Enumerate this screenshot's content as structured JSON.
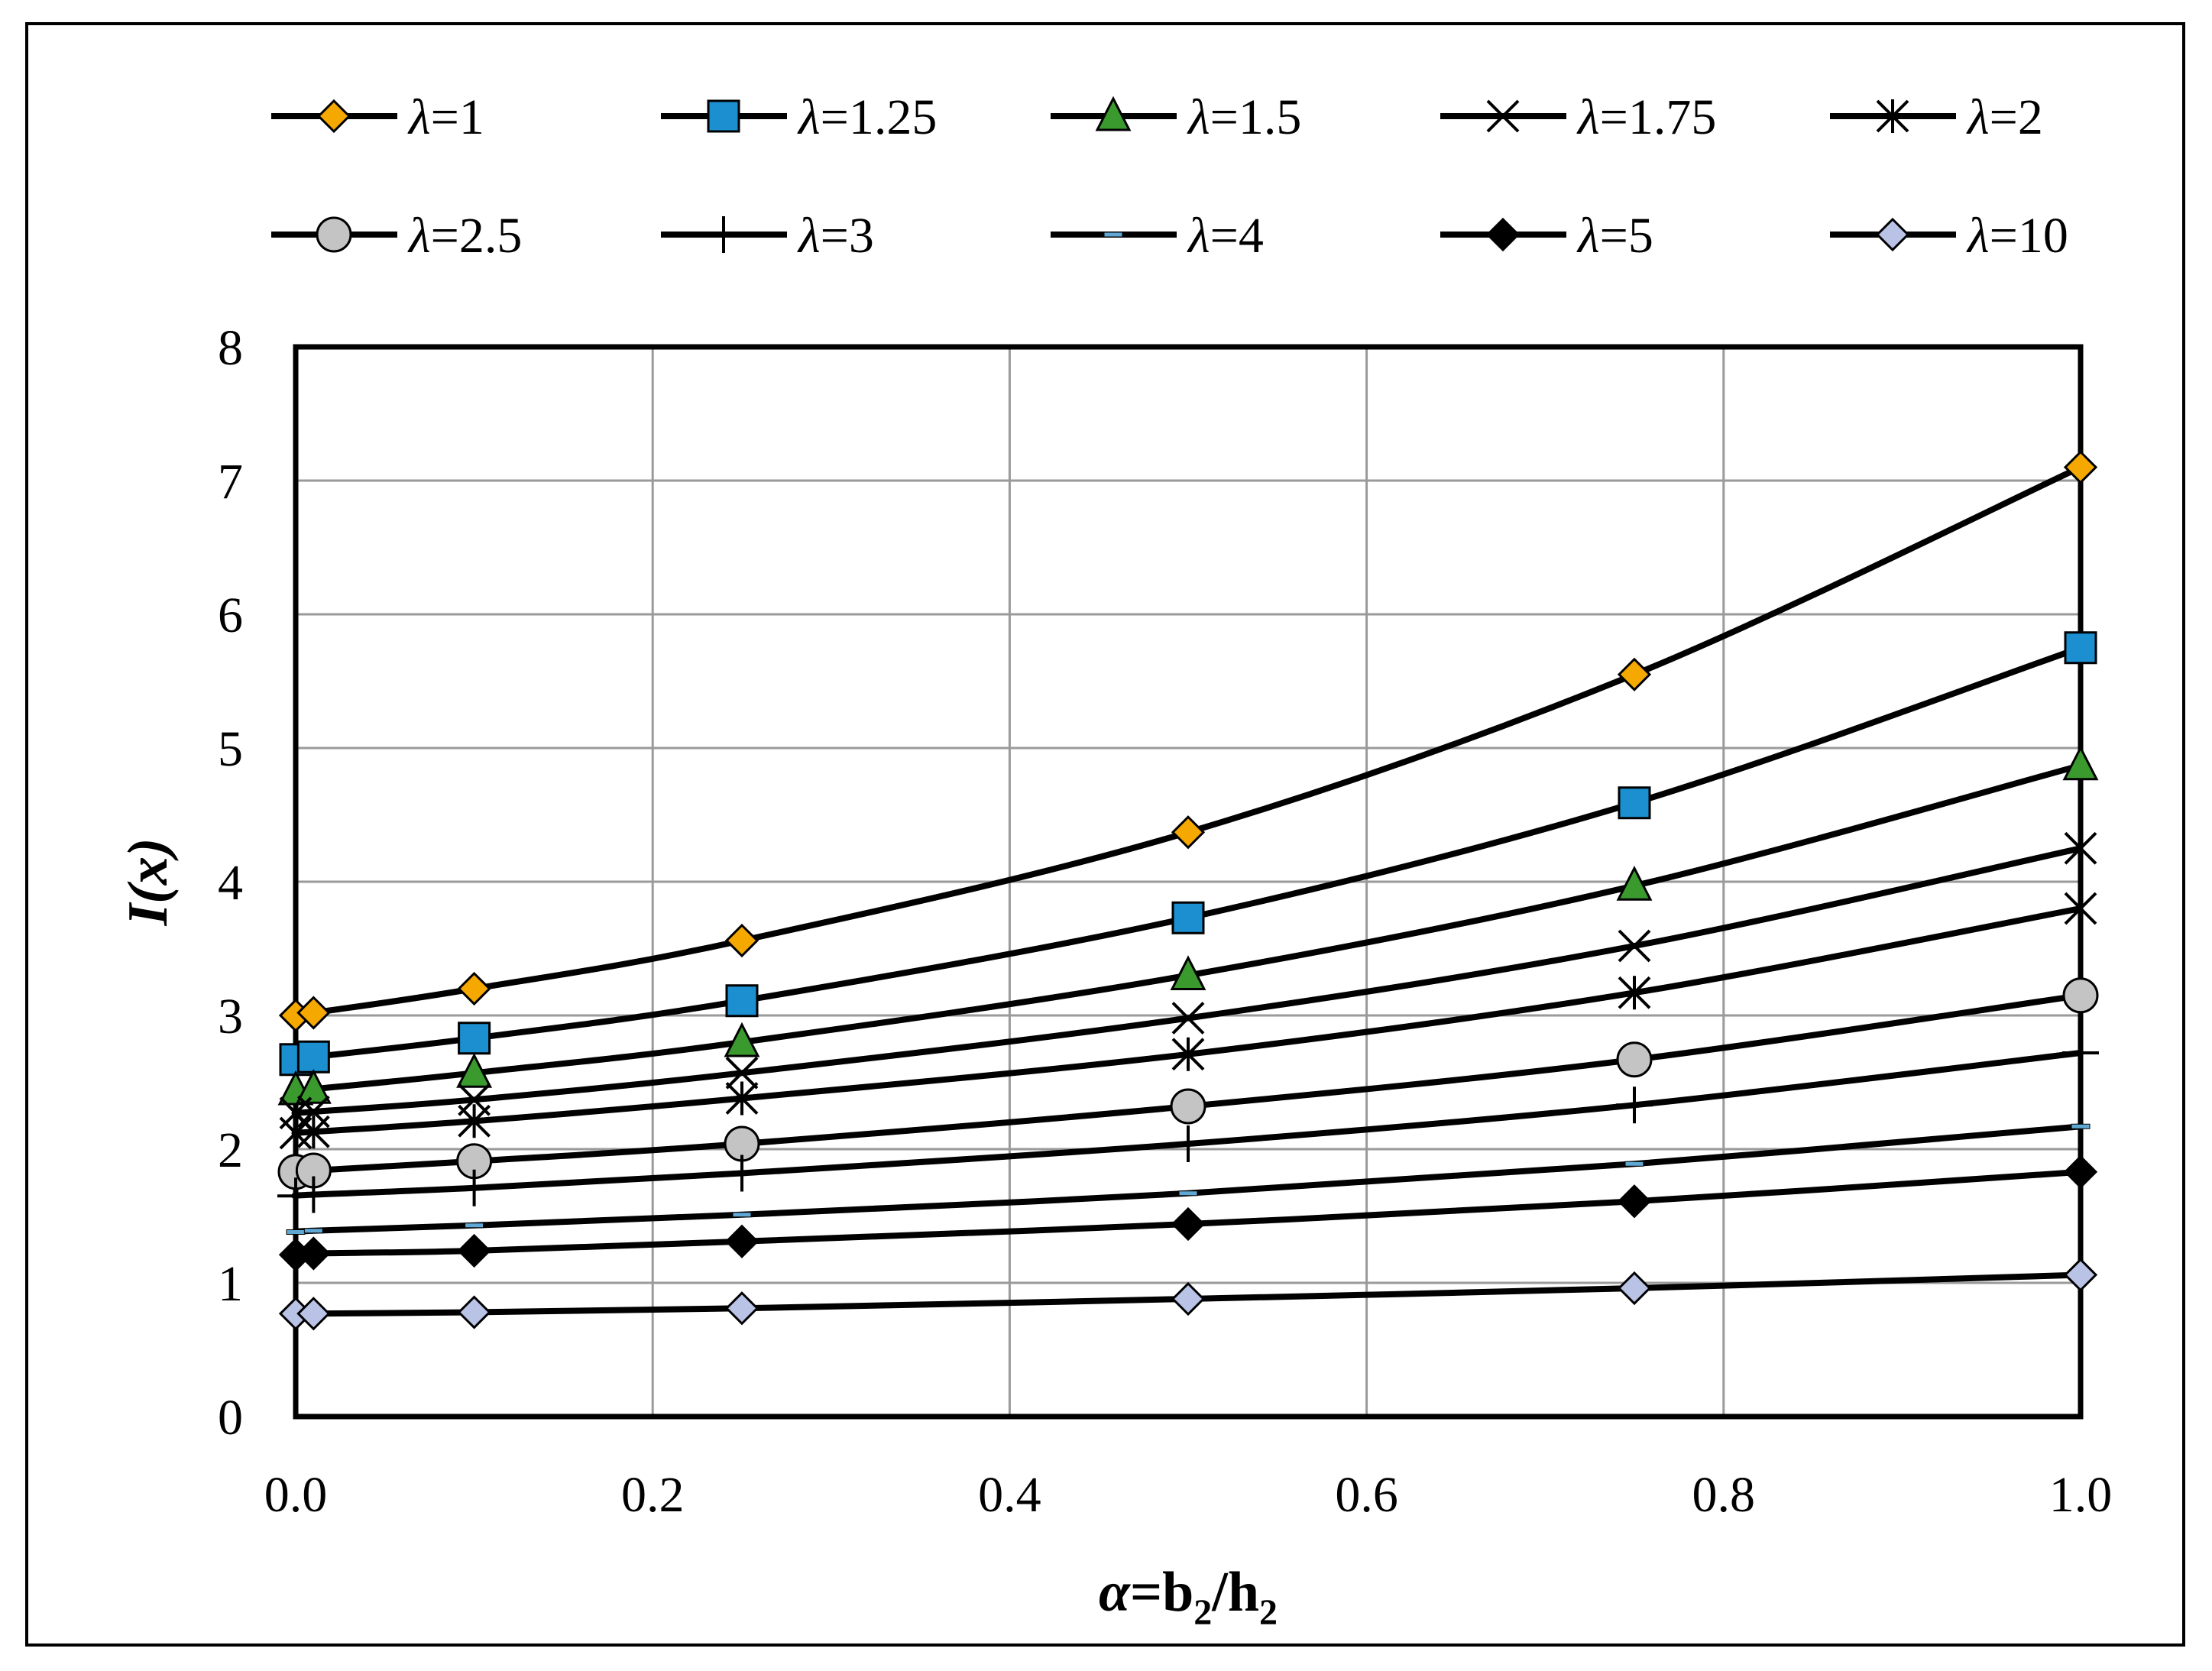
{
  "chart_data": {
    "type": "line",
    "xlabel": "α=b2/h2",
    "ylabel": "I(x)",
    "xlim": [
      0.0,
      1.0
    ],
    "ylim": [
      0,
      8
    ],
    "x_ticks": [
      "0.0",
      "0.2",
      "0.4",
      "0.6",
      "0.8",
      "1.0"
    ],
    "y_ticks": [
      "0",
      "1",
      "2",
      "3",
      "4",
      "5",
      "6",
      "7",
      "8"
    ],
    "grid": true,
    "legend_position": "top",
    "x": [
      0.0,
      0.01,
      0.1,
      0.25,
      0.5,
      0.75,
      1.0
    ],
    "series": [
      {
        "name": "λ=1",
        "prefix": "λ",
        "suffix": "=1",
        "marker": "diamond",
        "fill": "#F5A800",
        "values": [
          3.0,
          3.02,
          3.2,
          3.56,
          4.37,
          5.55,
          7.1
        ]
      },
      {
        "name": "λ=1.25",
        "prefix": "λ",
        "suffix": "=1.25",
        "marker": "square",
        "fill": "#1B8FD0",
        "values": [
          2.67,
          2.69,
          2.83,
          3.11,
          3.73,
          4.59,
          5.75
        ]
      },
      {
        "name": "λ=1.5",
        "prefix": "λ",
        "suffix": "=1.5",
        "marker": "triangle",
        "fill": "#3A9A2E",
        "values": [
          2.44,
          2.45,
          2.57,
          2.8,
          3.3,
          3.97,
          4.87
        ]
      },
      {
        "name": "λ=1.75",
        "prefix": "λ",
        "suffix": "=1.75",
        "marker": "x",
        "fill": "none",
        "values": [
          2.27,
          2.28,
          2.37,
          2.57,
          2.98,
          3.52,
          4.25
        ]
      },
      {
        "name": "λ=2",
        "prefix": "λ",
        "suffix": "=2",
        "marker": "star",
        "fill": "none",
        "values": [
          2.12,
          2.13,
          2.21,
          2.38,
          2.71,
          3.17,
          3.8
        ]
      },
      {
        "name": "λ=2.5",
        "prefix": "λ",
        "suffix": "=2.5",
        "marker": "circle",
        "fill": "#C4C4C4",
        "values": [
          1.83,
          1.84,
          1.91,
          2.04,
          2.32,
          2.67,
          3.15
        ]
      },
      {
        "name": "λ=3",
        "prefix": "λ",
        "suffix": "=3",
        "marker": "plus",
        "fill": "none",
        "values": [
          1.65,
          1.66,
          1.71,
          1.82,
          2.04,
          2.33,
          2.72
        ]
      },
      {
        "name": "λ=4",
        "prefix": "λ",
        "suffix": "=4",
        "marker": "dash",
        "fill": "#5FA8D3",
        "values": [
          1.38,
          1.39,
          1.43,
          1.51,
          1.67,
          1.89,
          2.17
        ]
      },
      {
        "name": "λ=5",
        "prefix": "λ",
        "suffix": "=5",
        "marker": "diamond",
        "fill": "#000000",
        "values": [
          1.21,
          1.22,
          1.24,
          1.31,
          1.44,
          1.61,
          1.83
        ]
      },
      {
        "name": "λ=10",
        "prefix": "λ",
        "suffix": "=10",
        "marker": "diamond",
        "fill": "#B9C3E6",
        "values": [
          0.77,
          0.77,
          0.78,
          0.81,
          0.88,
          0.96,
          1.06
        ]
      }
    ]
  }
}
